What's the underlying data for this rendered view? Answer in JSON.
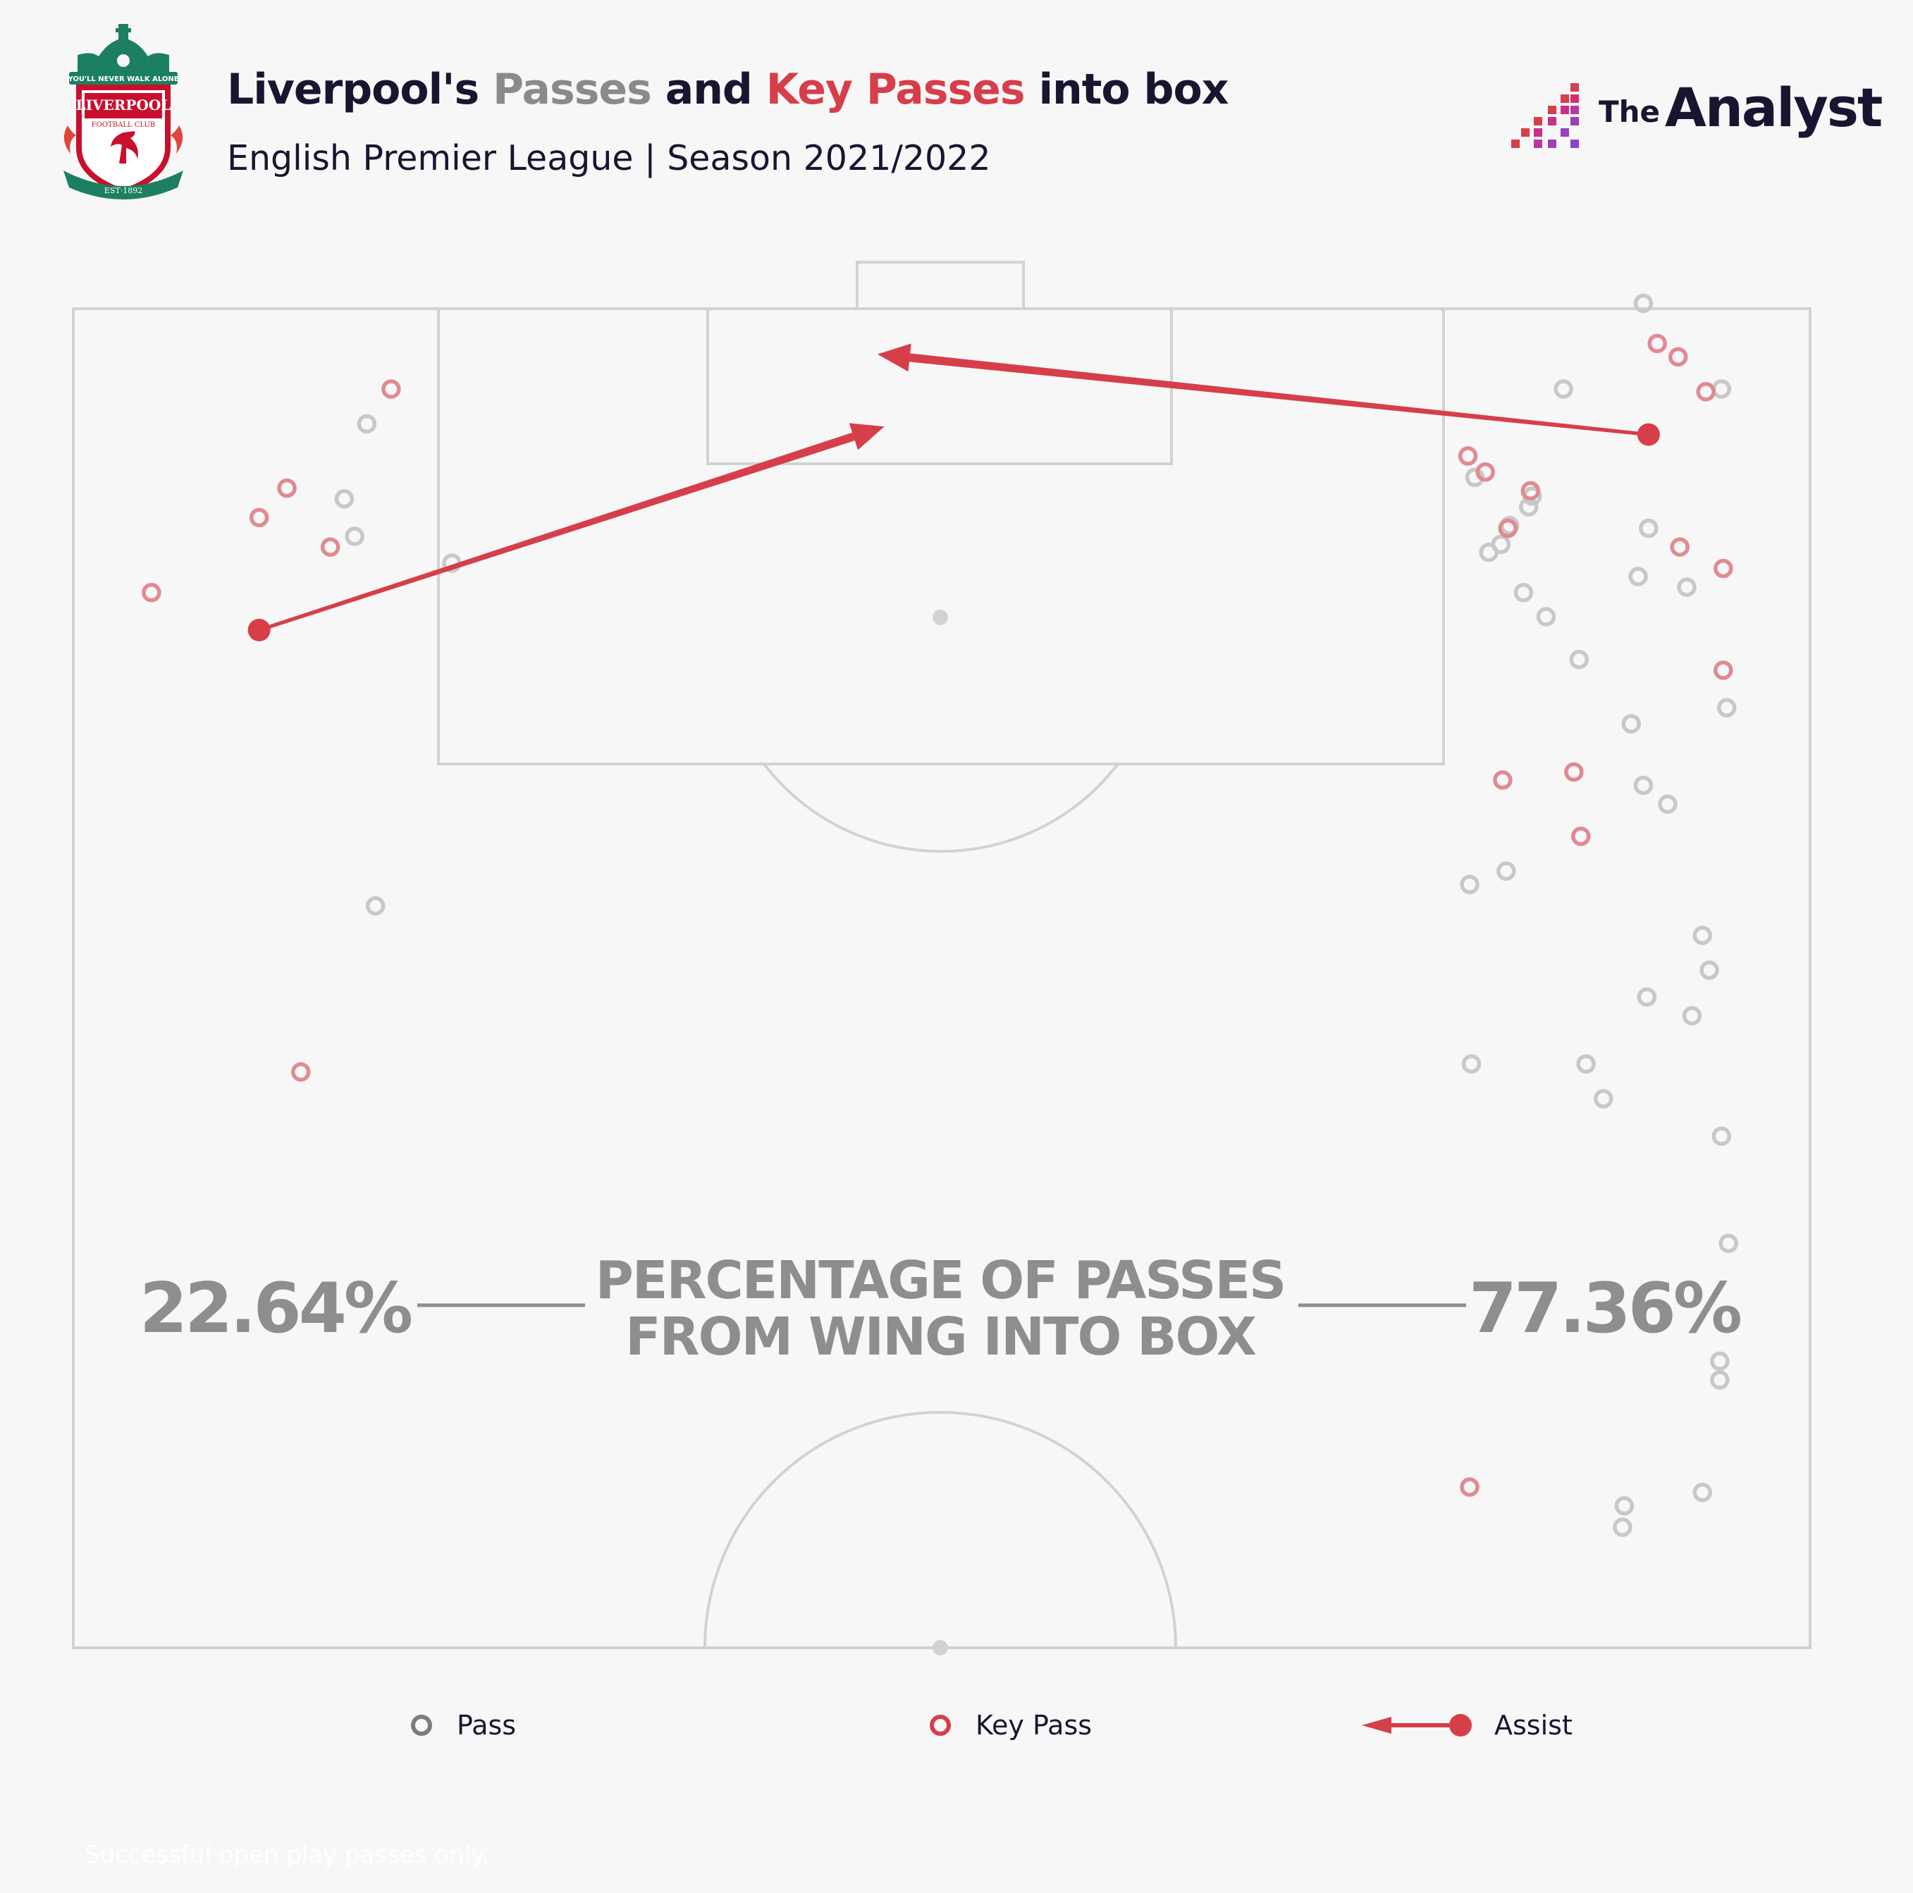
{
  "header": {
    "title_parts": [
      {
        "text": "Liverpool's ",
        "tone": "dark"
      },
      {
        "text": "Passes",
        "tone": "grey"
      },
      {
        "text": " and ",
        "tone": "dark"
      },
      {
        "text": "Key Passes",
        "tone": "red"
      },
      {
        "text": " into box",
        "tone": "dark"
      }
    ],
    "subtitle": "English Premier League | Season 2021/2022",
    "crest": {
      "motto": "YOU'LL NEVER WALK ALONE",
      "name": "LIVERPOOL",
      "club": "FOOTBALL CLUB",
      "est": "EST·1892"
    },
    "brand": {
      "prefix": "The",
      "name": "Analyst"
    }
  },
  "colors": {
    "pass": "#c8c8c8",
    "key_pass": "#e08a92",
    "assist": "#d63e4a",
    "pitch_lines": "#d2d2d2",
    "annotation": "#8e8e8e",
    "title_dark": "#1b1430"
  },
  "chart_data": {
    "type": "scatter",
    "title": "Liverpool's Passes and Key Passes into box",
    "subtitle": "English Premier League | Season 2021/2022",
    "pitch": {
      "orientation": "vertical-half",
      "attacking": "top",
      "x_range": [
        0,
        100
      ],
      "y_range": [
        50,
        100
      ]
    },
    "annotation": {
      "left_value": "22.64%",
      "right_value": "77.36%",
      "label_lines": [
        "PERCENTAGE OF PASSES",
        "FROM WING INTO BOX"
      ]
    },
    "legend": {
      "placement": "bottom",
      "items": [
        {
          "name": "Pass",
          "marker": "ring",
          "color": "#7c7c7c"
        },
        {
          "name": "Key Pass",
          "marker": "ring",
          "color": "#d63e4a"
        },
        {
          "name": "Assist",
          "marker": "arrow",
          "color": "#d63e4a"
        }
      ]
    },
    "series": [
      {
        "name": "Pass",
        "points": [
          [
            94.9,
            97.0
          ],
          [
            95.2,
            85.1
          ],
          [
            94.9,
            69.1
          ],
          [
            95.3,
            65.1
          ],
          [
            94.8,
            60.7
          ],
          [
            94.8,
            60.0
          ],
          [
            90.4,
            100.2
          ],
          [
            85.8,
            97.0
          ],
          [
            84.0,
            93.0
          ],
          [
            83.5,
            89.4
          ],
          [
            84.8,
            88.5
          ],
          [
            83.8,
            92.6
          ],
          [
            82.2,
            91.2
          ],
          [
            80.7,
            93.7
          ],
          [
            86.7,
            86.9
          ],
          [
            89.7,
            84.5
          ],
          [
            91.8,
            81.5
          ],
          [
            90.4,
            82.2
          ],
          [
            94.2,
            75.3
          ],
          [
            93.8,
            76.6
          ],
          [
            90.6,
            74.3
          ],
          [
            82.5,
            79.0
          ],
          [
            80.4,
            78.5
          ],
          [
            93.2,
            73.6
          ],
          [
            87.1,
            71.8
          ],
          [
            80.5,
            71.8
          ],
          [
            88.1,
            70.5
          ],
          [
            92.9,
            89.6
          ],
          [
            93.8,
            55.8
          ],
          [
            89.3,
            55.3
          ],
          [
            89.2,
            54.5
          ],
          [
            90.7,
            91.8
          ],
          [
            90.1,
            90.0
          ],
          [
            81.5,
            90.9
          ],
          [
            82.7,
            91.9
          ],
          [
            16.9,
            95.7
          ],
          [
            15.6,
            92.9
          ],
          [
            16.2,
            91.5
          ],
          [
            21.8,
            90.5
          ],
          [
            17.4,
            77.7
          ]
        ]
      },
      {
        "name": "Key Pass",
        "points": [
          [
            18.3,
            97.0
          ],
          [
            12.3,
            93.3
          ],
          [
            10.7,
            92.2
          ],
          [
            14.8,
            91.1
          ],
          [
            4.5,
            89.4
          ],
          [
            13.1,
            71.5
          ],
          [
            81.3,
            93.9
          ],
          [
            80.3,
            94.5
          ],
          [
            83.9,
            93.2
          ],
          [
            92.5,
            91.1
          ],
          [
            95.0,
            90.3
          ],
          [
            94.0,
            96.9
          ],
          [
            82.3,
            82.4
          ],
          [
            86.4,
            82.7
          ],
          [
            86.8,
            80.3
          ],
          [
            92.4,
            98.2
          ],
          [
            95.0,
            86.5
          ],
          [
            91.2,
            98.7
          ],
          [
            80.4,
            56.0
          ],
          [
            82.6,
            91.8
          ]
        ]
      },
      {
        "name": "Assist",
        "arrows": [
          {
            "from": [
              90.7,
              95.3
            ],
            "to": [
              46.3,
              98.3
            ]
          },
          {
            "from": [
              10.7,
              88.0
            ],
            "to": [
              46.7,
              95.6
            ]
          }
        ]
      }
    ]
  },
  "legend_labels": {
    "pass": "Pass",
    "key_pass": "Key Pass",
    "assist": "Assist"
  },
  "footnote": "Successful open play passes only."
}
